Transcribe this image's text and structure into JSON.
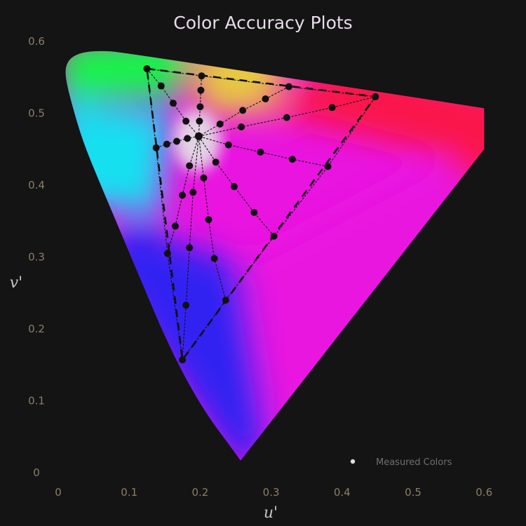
{
  "chart_data": {
    "type": "scatter",
    "title": "Color Accuracy Plots",
    "xlabel": "u'",
    "ylabel": "v'",
    "xlim": [
      0,
      0.6
    ],
    "ylim": [
      0,
      0.6
    ],
    "x_ticks": [
      "0",
      "0.1",
      "0.2",
      "0.3",
      "0.4",
      "0.5",
      "0.6"
    ],
    "y_ticks": [
      "0",
      "0.1",
      "0.2",
      "0.3",
      "0.4",
      "0.5",
      "0.6"
    ],
    "grid": false,
    "legend": {
      "position": "bottom-right",
      "entries": [
        "Measured Colors"
      ]
    },
    "colors": {
      "background": "#141414",
      "markers": "#111111",
      "legend_marker": "#e6d9ea",
      "white_point": "#e2d2e4",
      "green": "#15f548",
      "yellow": "#e6c940",
      "red": "#fa1648",
      "magenta": "#e914e0",
      "blue": "#3322f2",
      "cyan": "#14dff0"
    },
    "white_point": [
      0.198,
      0.468
    ],
    "locus": [
      [
        0.257,
        0.017
      ],
      [
        0.24,
        0.04
      ],
      [
        0.21,
        0.08
      ],
      [
        0.18,
        0.13
      ],
      [
        0.15,
        0.19
      ],
      [
        0.12,
        0.26
      ],
      [
        0.09,
        0.33
      ],
      [
        0.06,
        0.4
      ],
      [
        0.035,
        0.46
      ],
      [
        0.02,
        0.51
      ],
      [
        0.011,
        0.545
      ],
      [
        0.01,
        0.565
      ],
      [
        0.018,
        0.578
      ],
      [
        0.035,
        0.585
      ],
      [
        0.06,
        0.587
      ],
      [
        0.09,
        0.585
      ],
      [
        0.6,
        0.507
      ]
    ],
    "gamut_triangle": [
      [
        0.125,
        0.562
      ],
      [
        0.447,
        0.523
      ],
      [
        0.175,
        0.157
      ]
    ],
    "measured_colors": [
      [
        0.125,
        0.562
      ],
      [
        0.145,
        0.538
      ],
      [
        0.162,
        0.514
      ],
      [
        0.18,
        0.489
      ],
      [
        0.202,
        0.552
      ],
      [
        0.201,
        0.532
      ],
      [
        0.2,
        0.509
      ],
      [
        0.199,
        0.489
      ],
      [
        0.325,
        0.537
      ],
      [
        0.292,
        0.52
      ],
      [
        0.26,
        0.504
      ],
      [
        0.228,
        0.485
      ],
      [
        0.447,
        0.523
      ],
      [
        0.386,
        0.508
      ],
      [
        0.322,
        0.494
      ],
      [
        0.258,
        0.481
      ],
      [
        0.38,
        0.426
      ],
      [
        0.33,
        0.436
      ],
      [
        0.285,
        0.446
      ],
      [
        0.24,
        0.456
      ],
      [
        0.304,
        0.329
      ],
      [
        0.276,
        0.362
      ],
      [
        0.248,
        0.398
      ],
      [
        0.222,
        0.432
      ],
      [
        0.236,
        0.24
      ],
      [
        0.22,
        0.298
      ],
      [
        0.212,
        0.352
      ],
      [
        0.205,
        0.41
      ],
      [
        0.175,
        0.157
      ],
      [
        0.18,
        0.233
      ],
      [
        0.185,
        0.313
      ],
      [
        0.19,
        0.39
      ],
      [
        0.154,
        0.305
      ],
      [
        0.165,
        0.343
      ],
      [
        0.175,
        0.386
      ],
      [
        0.185,
        0.427
      ],
      [
        0.138,
        0.452
      ],
      [
        0.153,
        0.457
      ],
      [
        0.167,
        0.461
      ],
      [
        0.182,
        0.465
      ]
    ],
    "white_point_marker": [
      0.198,
      0.468
    ],
    "spokes": [
      [
        0,
        1,
        2,
        3
      ],
      [
        4,
        5,
        6,
        7
      ],
      [
        8,
        9,
        10,
        11
      ],
      [
        12,
        13,
        14,
        15
      ],
      [
        16,
        17,
        18,
        19
      ],
      [
        20,
        21,
        22,
        23
      ],
      [
        24,
        25,
        26,
        27
      ],
      [
        28,
        29,
        30,
        31
      ],
      [
        32,
        33,
        34,
        35
      ],
      [
        36,
        37,
        38,
        39
      ]
    ],
    "gamut_edge_points": [
      0,
      4,
      8,
      12,
      16,
      20,
      24,
      28,
      32,
      36
    ]
  }
}
